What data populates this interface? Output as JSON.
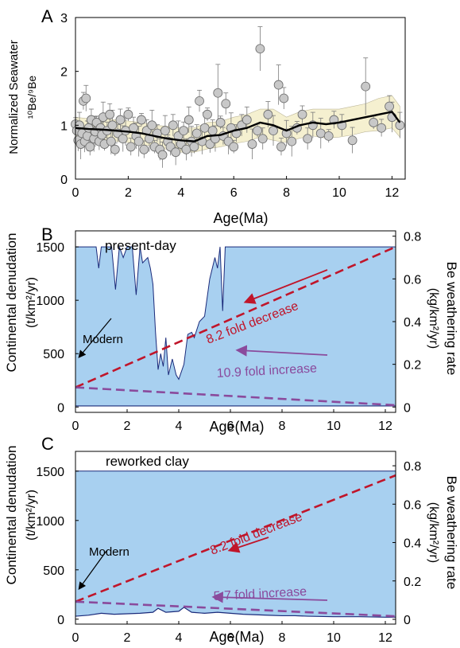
{
  "chart_data": [
    {
      "panel": "A",
      "type": "scatter",
      "xlabel": "Age(Ma)",
      "ylabel": [
        "Normalized Seawater",
        "¹⁰Be/⁹Be"
      ],
      "xlim": [
        0,
        12.5
      ],
      "ylim": [
        0,
        3
      ],
      "xticks": [
        0,
        2,
        4,
        6,
        8,
        10,
        12
      ],
      "yticks": [
        0,
        1,
        2,
        3
      ],
      "points": [
        [
          0.0,
          1.02
        ],
        [
          0.05,
          0.9
        ],
        [
          0.1,
          0.72
        ],
        [
          0.15,
          1.0
        ],
        [
          0.2,
          0.65
        ],
        [
          0.25,
          0.85
        ],
        [
          0.3,
          1.45
        ],
        [
          0.35,
          0.7
        ],
        [
          0.4,
          1.5
        ],
        [
          0.45,
          0.8
        ],
        [
          0.5,
          0.95
        ],
        [
          0.55,
          0.6
        ],
        [
          0.6,
          1.1
        ],
        [
          0.7,
          0.75
        ],
        [
          0.75,
          0.88
        ],
        [
          0.8,
          1.05
        ],
        [
          0.9,
          0.7
        ],
        [
          0.95,
          0.95
        ],
        [
          1.0,
          0.82
        ],
        [
          1.05,
          1.15
        ],
        [
          1.1,
          0.65
        ],
        [
          1.2,
          0.9
        ],
        [
          1.3,
          1.2
        ],
        [
          1.35,
          0.7
        ],
        [
          1.4,
          1.0
        ],
        [
          1.5,
          0.55
        ],
        [
          1.6,
          0.85
        ],
        [
          1.7,
          1.1
        ],
        [
          1.8,
          0.75
        ],
        [
          1.9,
          0.9
        ],
        [
          2.0,
          1.2
        ],
        [
          2.1,
          0.6
        ],
        [
          2.2,
          0.95
        ],
        [
          2.3,
          0.8
        ],
        [
          2.4,
          0.7
        ],
        [
          2.5,
          1.1
        ],
        [
          2.6,
          0.55
        ],
        [
          2.7,
          0.9
        ],
        [
          2.8,
          0.75
        ],
        [
          2.9,
          1.0
        ],
        [
          3.0,
          0.6
        ],
        [
          3.1,
          0.85
        ],
        [
          3.2,
          0.55
        ],
        [
          3.3,
          0.45
        ],
        [
          3.4,
          0.9
        ],
        [
          3.5,
          0.7
        ],
        [
          3.6,
          0.6
        ],
        [
          3.7,
          1.0
        ],
        [
          3.8,
          0.5
        ],
        [
          3.9,
          0.8
        ],
        [
          4.0,
          0.65
        ],
        [
          4.1,
          0.9
        ],
        [
          4.2,
          0.55
        ],
        [
          4.3,
          1.1
        ],
        [
          4.4,
          0.7
        ],
        [
          4.5,
          0.6
        ],
        [
          4.6,
          0.85
        ],
        [
          4.7,
          1.45
        ],
        [
          4.8,
          0.7
        ],
        [
          4.9,
          0.95
        ],
        [
          5.0,
          1.2
        ],
        [
          5.1,
          0.65
        ],
        [
          5.2,
          0.9
        ],
        [
          5.3,
          0.75
        ],
        [
          5.4,
          1.6
        ],
        [
          5.5,
          1.05
        ],
        [
          5.6,
          0.8
        ],
        [
          5.7,
          1.4
        ],
        [
          5.8,
          0.7
        ],
        [
          5.9,
          0.95
        ],
        [
          6.0,
          0.6
        ],
        [
          6.1,
          0.85
        ],
        [
          6.3,
          1.0
        ],
        [
          6.5,
          1.1
        ],
        [
          6.7,
          0.65
        ],
        [
          6.9,
          0.9
        ],
        [
          7.0,
          2.42
        ],
        [
          7.1,
          0.75
        ],
        [
          7.3,
          1.2
        ],
        [
          7.5,
          0.9
        ],
        [
          7.7,
          1.75
        ],
        [
          7.8,
          0.6
        ],
        [
          7.9,
          1.5
        ],
        [
          8.0,
          0.85
        ],
        [
          8.2,
          0.7
        ],
        [
          8.4,
          0.95
        ],
        [
          8.6,
          1.2
        ],
        [
          8.8,
          0.75
        ],
        [
          9.0,
          1.0
        ],
        [
          9.3,
          0.85
        ],
        [
          9.6,
          0.8
        ],
        [
          9.8,
          1.1
        ],
        [
          10.1,
          1.0
        ],
        [
          10.5,
          0.72
        ],
        [
          11.0,
          1.72
        ],
        [
          11.3,
          1.05
        ],
        [
          11.6,
          0.95
        ],
        [
          11.9,
          1.35
        ],
        [
          12.3,
          1.0
        ],
        [
          12.0,
          1.15
        ]
      ],
      "smoothed_line": {
        "x": [
          0,
          0.5,
          1,
          1.5,
          2,
          2.5,
          3,
          3.5,
          4,
          4.5,
          5,
          5.5,
          6,
          6.5,
          7,
          7.5,
          8,
          8.5,
          9,
          9.5,
          10,
          10.5,
          11,
          11.5,
          12,
          12.3
        ],
        "y": [
          0.95,
          0.93,
          0.92,
          0.9,
          0.88,
          0.85,
          0.8,
          0.75,
          0.72,
          0.7,
          0.8,
          0.82,
          0.9,
          0.95,
          1.05,
          1.0,
          0.9,
          1.0,
          1.05,
          1.02,
          1.05,
          1.1,
          1.15,
          1.2,
          1.25,
          1.05
        ]
      },
      "band_upper": [
        1.15,
        1.12,
        1.12,
        1.1,
        1.08,
        1.05,
        1.0,
        0.98,
        0.95,
        0.95,
        1.05,
        1.07,
        1.15,
        1.2,
        1.3,
        1.3,
        1.15,
        1.25,
        1.3,
        1.3,
        1.3,
        1.35,
        1.4,
        1.5,
        1.55,
        1.35
      ],
      "band_lower": [
        0.75,
        0.74,
        0.72,
        0.7,
        0.68,
        0.65,
        0.6,
        0.55,
        0.5,
        0.5,
        0.56,
        0.6,
        0.66,
        0.7,
        0.78,
        0.72,
        0.68,
        0.76,
        0.8,
        0.76,
        0.78,
        0.82,
        0.88,
        0.9,
        0.95,
        0.78
      ],
      "colors": {
        "points": "#c8c8c8",
        "line": "#000000",
        "band": "#f5f0d0"
      }
    },
    {
      "panel": "B",
      "type": "area",
      "annotation_title": "present-day",
      "xlabel": "Age(Ma)",
      "ylabel_left": [
        "Continental denudation",
        "(t/km²/yr)"
      ],
      "ylabel_right": [
        "Be weathering rate",
        "(kg/km²/yr)"
      ],
      "xlim": [
        0,
        12.4
      ],
      "ylim_left": [
        -50,
        1650
      ],
      "ylim_right": [
        -0.025,
        0.825
      ],
      "xticks": [
        0,
        2,
        4,
        6,
        8,
        10,
        12
      ],
      "yticks_left": [
        0,
        500,
        1000,
        1500
      ],
      "yticks_right": [
        0,
        0.2,
        0.4,
        0.6,
        0.8
      ],
      "area_upper": {
        "x": [
          0,
          0.8,
          0.9,
          1.0,
          1.4,
          1.55,
          1.7,
          1.85,
          2.0,
          2.2,
          2.35,
          2.5,
          2.6,
          2.8,
          2.9,
          3.0,
          3.1,
          3.2,
          3.3,
          3.4,
          3.5,
          3.6,
          3.75,
          3.9,
          4.0,
          4.2,
          4.35,
          4.5,
          4.6,
          4.8,
          5.0,
          5.2,
          5.4,
          5.5,
          5.6,
          5.7,
          5.8,
          5.9,
          12.4
        ],
        "y": [
          1500,
          1500,
          1300,
          1500,
          1500,
          1100,
          1500,
          1400,
          1500,
          1500,
          1050,
          1500,
          1350,
          1400,
          1300,
          1150,
          700,
          350,
          500,
          380,
          650,
          300,
          450,
          300,
          260,
          400,
          680,
          700,
          650,
          800,
          850,
          1200,
          1400,
          1300,
          1500,
          900,
          1500,
          1500,
          1500
        ]
      },
      "area_lower_level": 10,
      "lines": [
        {
          "name": "8.2 fold decrease",
          "color": "#c0152a",
          "x": [
            0,
            12.4
          ],
          "y_right": [
            0.092,
            0.75
          ]
        },
        {
          "name": "10.9 fold increase",
          "color": "#8a4a9c",
          "x": [
            0,
            12.4
          ],
          "y_right": [
            0.092,
            0.0085
          ]
        }
      ],
      "labels": {
        "modern": "Modern",
        "decrease": "8.2 fold decrease",
        "increase": "10.9 fold increase"
      },
      "colors": {
        "area": "#a8d0f0",
        "area_edge": "#1a2a7a"
      }
    },
    {
      "panel": "C",
      "type": "area",
      "annotation_title": "reworked clay",
      "xlabel": "Age(Ma)",
      "ylabel_left": [
        "Continental denudation",
        "(t/km²/yr)"
      ],
      "ylabel_right": [
        "Be weathering rate",
        "(kg/km²/yr)"
      ],
      "xlim": [
        0,
        12.4
      ],
      "ylim_left": [
        -50,
        1700
      ],
      "ylim_right": [
        -0.025,
        0.875
      ],
      "xticks": [
        0,
        2,
        4,
        6,
        8,
        10,
        12
      ],
      "yticks_left": [
        0,
        500,
        1000,
        1500
      ],
      "yticks_right": [
        0,
        0.2,
        0.4,
        0.6,
        0.8
      ],
      "area_top": 1500,
      "area_bottom_curve": {
        "x": [
          0,
          0.5,
          1,
          1.5,
          2,
          2.5,
          3,
          3.2,
          3.5,
          4,
          4.2,
          4.5,
          5,
          5.5,
          6,
          6.5,
          7,
          7.5,
          8,
          8.5,
          9,
          10,
          11,
          12,
          12.4
        ],
        "y": [
          30,
          40,
          60,
          50,
          55,
          60,
          70,
          110,
          70,
          80,
          120,
          70,
          60,
          70,
          60,
          50,
          45,
          40,
          35,
          35,
          30,
          25,
          25,
          20,
          20
        ]
      },
      "lines": [
        {
          "name": "8.2 fold decrease",
          "color": "#c0152a",
          "x": [
            0,
            12.4
          ],
          "y_right": [
            0.092,
            0.75
          ]
        },
        {
          "name": "5.7 fold increase",
          "color": "#8a4a9c",
          "x": [
            0,
            12.4
          ],
          "y_right": [
            0.092,
            0.016
          ]
        }
      ],
      "labels": {
        "modern": "Modern",
        "decrease": "8.2 fold decrease",
        "increase": "5.7 fold increase"
      },
      "colors": {
        "area": "#a8d0f0",
        "area_edge": "#1a2a7a"
      }
    }
  ],
  "panel_labels": [
    "A",
    "B",
    "C"
  ]
}
